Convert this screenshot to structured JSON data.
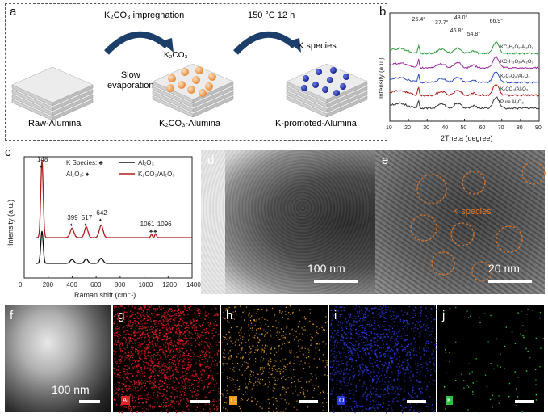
{
  "panel_labels": {
    "a": "a",
    "b": "b",
    "c": "c",
    "d": "d",
    "e": "e",
    "f": "f",
    "g": "g",
    "h": "h",
    "i": "i",
    "j": "j"
  },
  "panel_a": {
    "step1_label": "K₂CO₃ impregnation",
    "step2_label": "150 °C 12 h",
    "slow_evaporation": "Slow\nevaporation",
    "k2co3_label": "K₂CO₃",
    "k_species_label": "K species",
    "caption_raw": "Raw-Alumina",
    "caption_k2co3": "K₂CO₃-Alumina",
    "caption_kprom": "K-promoted-Alumina",
    "colors": {
      "particle_orange": "#f0a05a",
      "particle_blue": "#2a3aa8",
      "layer": "#e4e4e4"
    }
  },
  "chart_data": [
    {
      "type": "line",
      "panel": "b",
      "xlabel": "2Theta (degree)",
      "ylabel": "Intensity (a.u.)",
      "xlim": [
        10,
        90
      ],
      "xticks": [
        10,
        20,
        30,
        40,
        50,
        60,
        70,
        80,
        90
      ],
      "peak_labels": [
        {
          "x": 25.4,
          "text": "25.4°"
        },
        {
          "x": 37.7,
          "text": "37.7°"
        },
        {
          "x": 45.8,
          "text": "45.8°"
        },
        {
          "x": 48.0,
          "text": "48.0°"
        },
        {
          "x": 54.8,
          "text": "54.8°"
        },
        {
          "x": 66.9,
          "text": "66.9°"
        }
      ],
      "series": [
        {
          "name": "Pure Al₂O₃",
          "color": "#333333"
        },
        {
          "name": "K₂CO₃/Al₂O₃",
          "color": "#b01c1c"
        },
        {
          "name": "K₂C₂O₄/Al₂O₃",
          "color": "#2b4fc9"
        },
        {
          "name": "KC₂H₃O₂/Al₂O₃",
          "color": "#9a2aa0"
        },
        {
          "name": "KC₂H₃O₂/Al₂O₃",
          "color": "#2a9a3a"
        }
      ]
    },
    {
      "type": "line",
      "panel": "c",
      "xlabel": "Raman shift (cm⁻¹)",
      "ylabel": "Intensity (a.u.)",
      "xlim": [
        0,
        1400
      ],
      "xticks": [
        0,
        200,
        400,
        600,
        800,
        1000,
        1200,
        1400
      ],
      "legend_species": "K Species: ♣",
      "legend_al2o3": "Al₂O₃: ♦",
      "peaks": [
        {
          "x": 148,
          "text": "148"
        },
        {
          "x": 399,
          "text": "399"
        },
        {
          "x": 517,
          "text": "517"
        },
        {
          "x": 642,
          "text": "642"
        },
        {
          "x": 1061,
          "text": "1061"
        },
        {
          "x": 1096,
          "text": "1096"
        }
      ],
      "series": [
        {
          "name": "Al₂O₃",
          "color": "#111111"
        },
        {
          "name": "K₂CO₃/Al₂O₃",
          "color": "#b01c1c"
        }
      ]
    }
  ],
  "panel_d": {
    "scale": "100 nm"
  },
  "panel_e": {
    "scale": "20 nm",
    "annotation": "K species"
  },
  "panel_f": {
    "scale": "100 nm"
  },
  "maps": [
    {
      "key": "g",
      "element": "Al",
      "color": "#e02020"
    },
    {
      "key": "h",
      "element": "C",
      "color": "#f0a020"
    },
    {
      "key": "i",
      "element": "O",
      "color": "#2a3ae0"
    },
    {
      "key": "j",
      "element": "K",
      "color": "#30e040"
    }
  ]
}
